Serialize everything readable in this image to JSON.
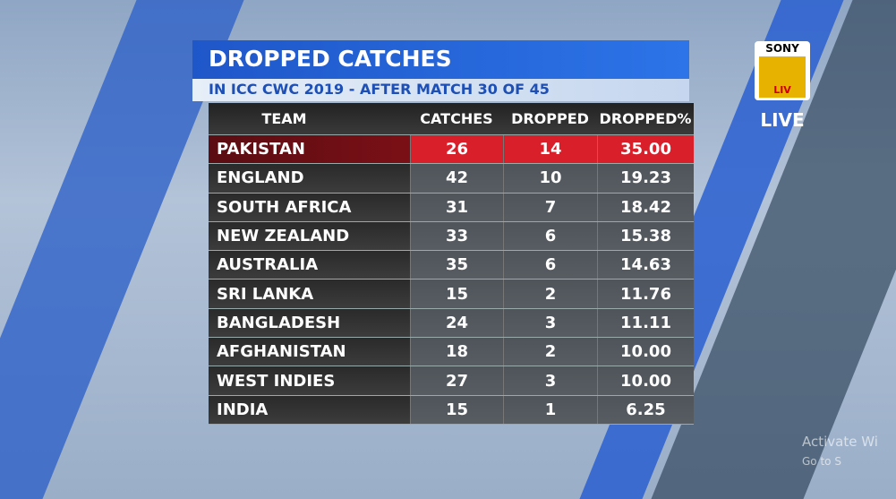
{
  "header": {
    "title": "DROPPED CATCHES",
    "subtitle": "IN ICC CWC 2019 - AFTER MATCH 30 OF 45"
  },
  "table": {
    "columns": [
      "TEAM",
      "CATCHES",
      "DROPPED",
      "DROPPED%"
    ],
    "rows": [
      [
        "PAKISTAN",
        "26",
        "14",
        "35.00"
      ],
      [
        "ENGLAND",
        "42",
        "10",
        "19.23"
      ],
      [
        "SOUTH AFRICA",
        "31",
        "7",
        "18.42"
      ],
      [
        "NEW ZEALAND",
        "33",
        "6",
        "15.38"
      ],
      [
        "AUSTRALIA",
        "35",
        "6",
        "14.63"
      ],
      [
        "SRI LANKA",
        "15",
        "2",
        "11.76"
      ],
      [
        "BANGLADESH",
        "24",
        "3",
        "11.11"
      ],
      [
        "AFGHANISTAN",
        "18",
        "2",
        "10.00"
      ],
      [
        "WEST INDIES",
        "27",
        "3",
        "10.00"
      ],
      [
        "INDIA",
        "15",
        "1",
        "6.25"
      ]
    ]
  },
  "logo": {
    "brand": "SONY",
    "sub": "LIV",
    "live": "LIVE"
  },
  "watermark": {
    "line1": "Activate Wi",
    "line2": "Go to S"
  }
}
